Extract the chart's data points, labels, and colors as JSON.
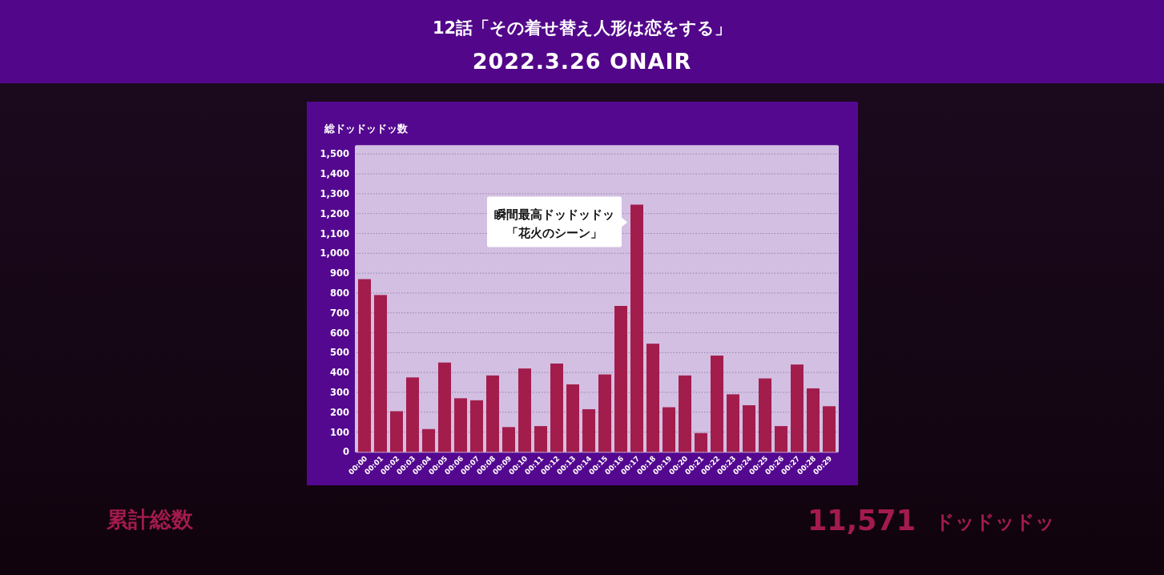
{
  "chart_data": {
    "type": "bar",
    "title": "12話「その着せ替え人形は恋をする」",
    "subtitle": "2022.3.26 ONAIR",
    "ylabel": "総ドッドッドッ数",
    "categories": [
      "00:00",
      "00:01",
      "00:02",
      "00:03",
      "00:04",
      "00:05",
      "00:06",
      "00:07",
      "00:08",
      "00:09",
      "00:10",
      "00:11",
      "00:12",
      "00:13",
      "00:14",
      "00:15",
      "00:16",
      "00:17",
      "00:18",
      "00:19",
      "00:20",
      "00:21",
      "00:22",
      "00:23",
      "00:24",
      "00:25",
      "00:26",
      "00:27",
      "00:28",
      "00:29"
    ],
    "values": [
      870,
      790,
      205,
      375,
      115,
      450,
      270,
      260,
      385,
      125,
      420,
      130,
      445,
      340,
      215,
      390,
      735,
      1245,
      545,
      225,
      385,
      95,
      485,
      290,
      235,
      370,
      130,
      440,
      320,
      230
    ],
    "color": "#a31d4c",
    "ylim": [
      0,
      1500
    ],
    "yticks": [
      0,
      100,
      200,
      300,
      400,
      500,
      600,
      700,
      800,
      900,
      {
        "value": 1000,
        "label": "1,000"
      },
      {
        "value": 1100,
        "label": "1,100"
      },
      {
        "value": 1200,
        "label": "1,200"
      },
      {
        "value": 1300,
        "label": "1,300"
      },
      {
        "value": 1400,
        "label": "1,400"
      },
      {
        "value": 1500,
        "label": "1,500"
      }
    ],
    "grid": "y",
    "annotations": [
      {
        "text": "瞬間最高ドッドッドッ「花火のシーン」",
        "x": "00:17",
        "y": 1245
      },
      "累計総数",
      "11,571",
      "ドッドッドッ"
    ]
  }
}
